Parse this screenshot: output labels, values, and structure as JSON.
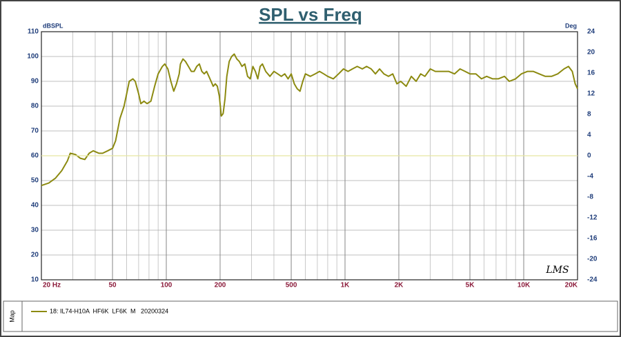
{
  "chart_data": {
    "type": "line",
    "title": "SPL vs Freq",
    "ylabel": "dBSPL",
    "y2label": "Deg",
    "annotation": "LMS",
    "legend_title": "Map",
    "log_x": true,
    "grid": true,
    "xlim": [
      20,
      20000
    ],
    "xticks": [
      {
        "value": 20,
        "label": "20 Hz"
      },
      50,
      100,
      200,
      500,
      {
        "value": 1000,
        "label": "1K"
      },
      {
        "value": 2000,
        "label": "2K"
      },
      {
        "value": 5000,
        "label": "5K"
      },
      {
        "value": 10000,
        "label": "10K"
      },
      {
        "value": 20000,
        "label": "20K"
      }
    ],
    "ylim": [
      10,
      110
    ],
    "yticks": [
      10,
      20,
      30,
      40,
      50,
      60,
      70,
      80,
      90,
      100,
      110
    ],
    "y2lim": [
      -24,
      24
    ],
    "y2ticks": [
      -24,
      -20,
      -16,
      -12,
      -8,
      -4,
      0,
      4,
      8,
      12,
      16,
      20,
      24
    ],
    "x": [
      20,
      22,
      24,
      26,
      28,
      29,
      31,
      33,
      35,
      37,
      39,
      42,
      44,
      47,
      50,
      52,
      55,
      58,
      60,
      62,
      65,
      67,
      70,
      72,
      75,
      78,
      82,
      86,
      90,
      95,
      98,
      102,
      106,
      110,
      114,
      118,
      120,
      124,
      128,
      133,
      138,
      143,
      148,
      153,
      158,
      163,
      168,
      173,
      178,
      183,
      188,
      193,
      198,
      203,
      208,
      213,
      218,
      225,
      232,
      240,
      248,
      256,
      265,
      275,
      285,
      295,
      305,
      315,
      325,
      335,
      345,
      360,
      380,
      400,
      420,
      440,
      460,
      480,
      500,
      520,
      540,
      560,
      580,
      600,
      640,
      680,
      720,
      760,
      800,
      860,
      920,
      980,
      1040,
      1100,
      1170,
      1250,
      1320,
      1400,
      1480,
      1560,
      1650,
      1750,
      1850,
      1950,
      2050,
      2200,
      2350,
      2500,
      2650,
      2800,
      3000,
      3200,
      3500,
      3800,
      4100,
      4400,
      4700,
      5000,
      5400,
      5800,
      6200,
      6700,
      7200,
      7800,
      8300,
      9000,
      9700,
      10500,
      11300,
      12200,
      13200,
      14300,
      15500,
      16800,
      17800,
      18700,
      19400,
      20000
    ],
    "series": [
      {
        "name": "18: IL74-H10A  HF6K  LF6K  M   20200324",
        "color": "#8c8a10",
        "values": [
          48,
          49,
          51,
          54,
          58,
          61,
          60.5,
          59,
          58.5,
          61,
          62,
          61,
          61,
          62,
          63,
          66,
          75,
          80,
          85,
          90,
          91,
          90,
          85,
          81,
          82,
          81,
          82,
          88,
          93,
          96,
          97,
          95,
          90,
          86,
          89,
          93,
          97,
          99,
          98,
          96,
          94,
          94,
          96,
          97,
          94,
          93,
          94,
          92,
          90,
          88,
          89,
          88,
          84,
          76,
          77,
          83,
          92,
          98,
          100,
          101,
          99,
          98,
          96,
          97,
          92,
          91,
          96,
          94,
          91,
          96,
          97,
          94,
          92,
          94,
          93,
          92,
          93,
          91,
          93,
          89,
          87,
          86,
          90,
          93,
          92,
          93,
          94,
          93,
          92,
          91,
          93,
          95,
          94,
          95,
          96,
          95,
          96,
          95,
          93,
          95,
          93,
          92,
          93,
          89,
          90,
          88,
          92,
          90,
          93,
          92,
          95,
          94,
          94,
          94,
          93,
          95,
          94,
          93,
          93,
          91,
          92,
          91,
          91,
          92,
          90,
          91,
          93,
          94,
          94,
          93,
          92,
          92,
          93,
          95,
          96,
          94,
          89,
          87
        ]
      },
      {
        "color": "#e6e6a0",
        "axis": "y2",
        "x": [
          20,
          20000
        ],
        "values": [
          0,
          0
        ]
      }
    ]
  }
}
